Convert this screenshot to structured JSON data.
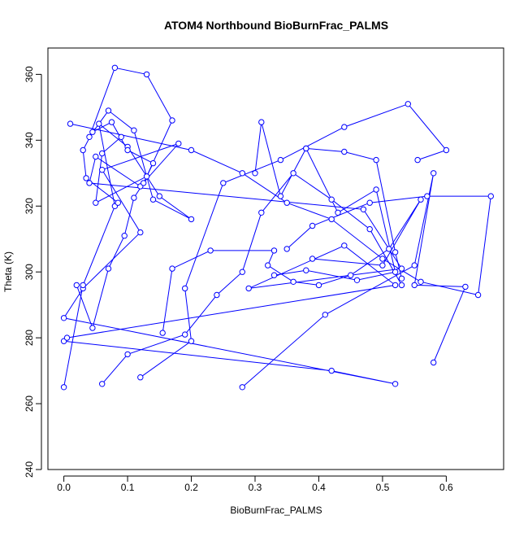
{
  "chart_data": {
    "type": "scatter",
    "connected": true,
    "title": "ATOM4 Northbound BioBurnFrac_PALMS",
    "xlabel": "BioBurnFrac_PALMS",
    "ylabel": "Theta (K)",
    "xlim": [
      -0.025,
      0.69
    ],
    "ylim": [
      240,
      368
    ],
    "xticks": [
      0.0,
      0.1,
      0.2,
      0.3,
      0.4,
      0.5,
      0.6
    ],
    "xtick_labels": [
      "0.0",
      "0.1",
      "0.2",
      "0.3",
      "0.4",
      "0.5",
      "0.6"
    ],
    "yticks": [
      240,
      260,
      280,
      300,
      320,
      340,
      360
    ],
    "ytick_labels": [
      "240",
      "260",
      "280",
      "300",
      "320",
      "340",
      "360"
    ],
    "grid": false,
    "legend": "none",
    "color": "#0000ff",
    "marker": "open-circle",
    "series": [
      {
        "x": [
          0.0,
          0.42,
          0.52,
          0.0,
          0.03,
          0.12,
          0.06,
          0.18,
          0.12,
          0.05,
          0.04,
          0.47,
          0.53,
          0.29,
          0.44,
          0.52,
          0.005
        ],
        "y": [
          279.0,
          270.0,
          266.0,
          286.0,
          295.0,
          312.0,
          331.0,
          339.0,
          326.0,
          335.0,
          327.0,
          319.0,
          301.0,
          295.0,
          308.0,
          296.0,
          280.0
        ]
      },
      {
        "x": [
          0.0,
          0.03,
          0.08,
          0.055,
          0.1,
          0.15,
          0.2,
          0.14,
          0.11,
          0.07,
          0.04,
          0.08,
          0.13,
          0.17,
          0.13,
          0.05,
          0.06,
          0.09
        ],
        "y": [
          265.0,
          296.0,
          320.0,
          345.0,
          338.0,
          323.0,
          316.0,
          322.0,
          343.0,
          349.0,
          341.0,
          362.0,
          360.0,
          346.0,
          329.0,
          321.0,
          336.0,
          341.0
        ]
      },
      {
        "x": [
          0.12,
          0.2,
          0.19,
          0.25,
          0.34,
          0.44,
          0.54,
          0.6,
          0.555
        ],
        "y": [
          268.0,
          279.0,
          295.0,
          327.0,
          334.0,
          344.0,
          351.0,
          337.0,
          334.0
        ]
      },
      {
        "x": [
          0.155,
          0.17,
          0.23,
          0.33,
          0.32,
          0.36,
          0.4,
          0.45,
          0.51,
          0.56,
          0.5,
          0.39
        ],
        "y": [
          281.5,
          301.0,
          306.5,
          306.5,
          302.0,
          297.0,
          296.0,
          299.0,
          307.0,
          322.0,
          302.0,
          304.0
        ]
      },
      {
        "x": [
          0.06,
          0.1,
          0.19,
          0.24,
          0.28,
          0.31,
          0.36,
          0.42,
          0.48,
          0.53
        ],
        "y": [
          266.0,
          275.0,
          281.0,
          293.0,
          300.0,
          318.0,
          330.0,
          322.0,
          313.0,
          296.0
        ]
      },
      {
        "x": [
          0.28,
          0.41,
          0.55,
          0.58,
          0.55,
          0.63,
          0.58
        ],
        "y": [
          265.0,
          287.0,
          302.0,
          330.0,
          296.0,
          295.5,
          272.5
        ]
      },
      {
        "x": [
          0.01,
          0.2,
          0.28,
          0.35,
          0.42,
          0.5,
          0.56,
          0.65,
          0.67,
          0.57,
          0.48,
          0.39,
          0.35
        ],
        "y": [
          345.0,
          337.0,
          330.0,
          321.0,
          316.0,
          304.0,
          297.0,
          293.0,
          323.0,
          323.0,
          321.0,
          314.0,
          307.0
        ]
      },
      {
        "x": [
          0.3,
          0.31,
          0.34,
          0.38,
          0.43,
          0.49,
          0.52,
          0.46,
          0.38,
          0.33
        ],
        "y": [
          330.0,
          345.5,
          323.0,
          337.5,
          318.0,
          325.0,
          300.0,
          297.5,
          300.5,
          299.0
        ]
      },
      {
        "x": [
          0.02,
          0.045,
          0.07,
          0.095,
          0.11,
          0.125,
          0.14,
          0.1,
          0.075,
          0.045,
          0.03,
          0.035,
          0.085
        ],
        "y": [
          296.0,
          283.0,
          301.0,
          311.0,
          322.5,
          327.0,
          333.0,
          337.0,
          345.5,
          342.5,
          337.0,
          328.5,
          321.0
        ]
      },
      {
        "x": [
          0.38,
          0.44,
          0.49,
          0.52,
          0.53
        ],
        "y": [
          337.5,
          336.5,
          334.0,
          306.0,
          298.0
        ]
      }
    ]
  }
}
